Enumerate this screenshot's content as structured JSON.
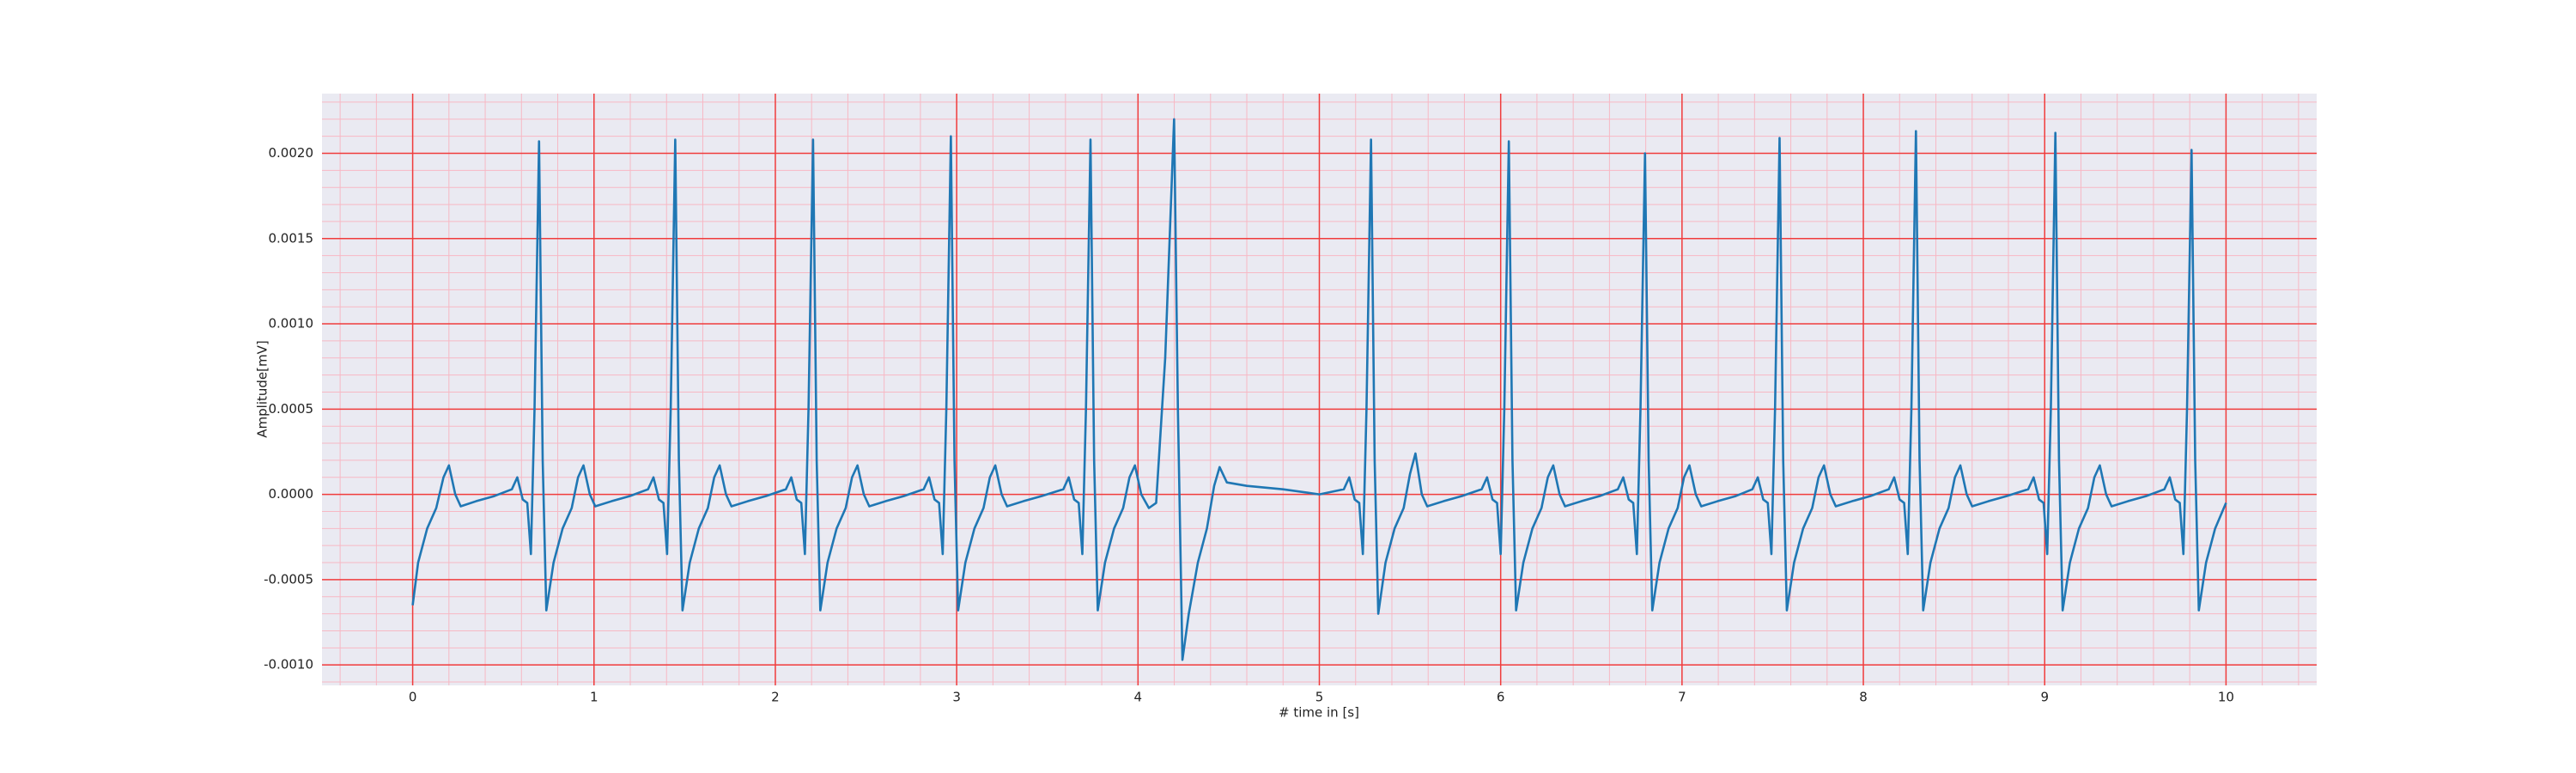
{
  "chart_data": {
    "type": "line",
    "xlabel": "# time in [s]",
    "ylabel": "Amplitude[mV]",
    "color": "#1f77b4",
    "background": "#eaeaf2",
    "grid": true,
    "grid_color": "#f03c3c",
    "minor_grid": {
      "color": "#f7b8c4",
      "x": 0.2,
      "y": 0.0001
    },
    "xlim": [
      -0.5,
      10.5
    ],
    "ylim": [
      -0.00112,
      0.00235
    ],
    "xticks": [
      0,
      1,
      2,
      3,
      4,
      5,
      6,
      7,
      8,
      9,
      10
    ],
    "yticks": [
      {
        "value": -0.001,
        "label": "-0.0010"
      },
      {
        "value": -0.0005,
        "label": "-0.0005"
      },
      {
        "value": 0,
        "label": "0.0000"
      },
      {
        "value": 0.0005,
        "label": "0.0005"
      },
      {
        "value": 0.001,
        "label": "0.0010"
      },
      {
        "value": 0.0015,
        "label": "0.0015"
      },
      {
        "value": 0.002,
        "label": "0.0020"
      }
    ],
    "x": [
      0,
      0.03,
      0.08,
      0.13,
      0.17,
      0.2,
      0.235,
      0.265,
      0.35,
      0.45,
      0.547,
      0.577,
      0.607,
      0.632,
      0.652,
      0.672,
      0.697,
      0.717,
      0.737,
      0.777,
      0.827,
      0.877,
      0.912,
      0.942,
      0.977,
      1.007,
      1.097,
      1.197,
      1.298,
      1.328,
      1.358,
      1.383,
      1.403,
      1.423,
      1.448,
      1.468,
      1.488,
      1.528,
      1.578,
      1.628,
      1.663,
      1.693,
      1.728,
      1.758,
      1.848,
      1.948,
      2.058,
      2.088,
      2.118,
      2.143,
      2.163,
      2.183,
      2.208,
      2.228,
      2.248,
      2.288,
      2.338,
      2.388,
      2.423,
      2.453,
      2.488,
      2.518,
      2.608,
      2.708,
      2.818,
      2.848,
      2.878,
      2.903,
      2.923,
      2.943,
      2.968,
      2.988,
      3.008,
      3.048,
      3.098,
      3.148,
      3.183,
      3.213,
      3.248,
      3.278,
      3.368,
      3.468,
      3.588,
      3.618,
      3.648,
      3.673,
      3.693,
      3.713,
      3.738,
      3.758,
      3.778,
      3.818,
      3.868,
      3.918,
      3.953,
      3.983,
      4.018,
      4.06,
      4.1,
      4.15,
      4.199,
      4.22,
      4.245,
      4.28,
      4.33,
      4.38,
      4.42,
      4.45,
      4.49,
      4.6,
      4.8,
      5.0,
      5.135,
      5.165,
      5.195,
      5.22,
      5.24,
      5.26,
      5.285,
      5.305,
      5.325,
      5.365,
      5.415,
      5.465,
      5.5,
      5.53,
      5.565,
      5.595,
      5.685,
      5.785,
      5.895,
      5.925,
      5.955,
      5.98,
      6.0,
      6.02,
      6.045,
      6.065,
      6.085,
      6.125,
      6.175,
      6.225,
      6.26,
      6.29,
      6.325,
      6.355,
      6.445,
      6.545,
      6.646,
      6.676,
      6.706,
      6.731,
      6.751,
      6.771,
      6.796,
      6.816,
      6.836,
      6.876,
      6.926,
      6.976,
      7.011,
      7.041,
      7.076,
      7.106,
      7.196,
      7.296,
      7.388,
      7.418,
      7.448,
      7.473,
      7.493,
      7.513,
      7.538,
      7.558,
      7.578,
      7.618,
      7.668,
      7.718,
      7.753,
      7.783,
      7.818,
      7.848,
      7.938,
      8.038,
      8.14,
      8.17,
      8.2,
      8.225,
      8.245,
      8.265,
      8.29,
      8.31,
      8.33,
      8.37,
      8.42,
      8.47,
      8.505,
      8.535,
      8.57,
      8.6,
      8.69,
      8.79,
      8.909,
      8.939,
      8.969,
      8.994,
      9.014,
      9.034,
      9.059,
      9.079,
      9.099,
      9.139,
      9.189,
      9.239,
      9.274,
      9.304,
      9.339,
      9.369,
      9.459,
      9.559,
      9.66,
      9.69,
      9.72,
      9.745,
      9.765,
      9.785,
      9.81,
      9.83,
      9.85,
      9.89,
      9.94,
      10.0
    ],
    "values": [
      -0.00065,
      -0.0004,
      -0.0002,
      -8e-05,
      0.0001,
      0.00017,
      0,
      -7e-05,
      -4e-05,
      -1e-05,
      3e-05,
      0.0001,
      -3e-05,
      -5e-05,
      -0.00035,
      0.0005,
      0.00207,
      0.0002,
      -0.00068,
      -0.0004,
      -0.0002,
      -8e-05,
      0.0001,
      0.00017,
      0,
      -7e-05,
      -4e-05,
      -1e-05,
      3e-05,
      0.0001,
      -3e-05,
      -5e-05,
      -0.00035,
      0.0005,
      0.00208,
      0.0002,
      -0.00068,
      -0.0004,
      -0.0002,
      -8e-05,
      0.0001,
      0.00017,
      0,
      -7e-05,
      -4e-05,
      -1e-05,
      3e-05,
      0.0001,
      -3e-05,
      -5e-05,
      -0.00035,
      0.0005,
      0.00208,
      0.0002,
      -0.00068,
      -0.0004,
      -0.0002,
      -8e-05,
      0.0001,
      0.00017,
      0,
      -7e-05,
      -4e-05,
      -1e-05,
      3e-05,
      0.0001,
      -3e-05,
      -5e-05,
      -0.00035,
      0.0005,
      0.0021,
      0.0002,
      -0.00068,
      -0.0004,
      -0.0002,
      -8e-05,
      0.0001,
      0.00017,
      0,
      -7e-05,
      -4e-05,
      -1e-05,
      3e-05,
      0.0001,
      -3e-05,
      -5e-05,
      -0.00035,
      0.0005,
      0.00208,
      0.0002,
      -0.00068,
      -0.0004,
      -0.0002,
      -8e-05,
      0.0001,
      0.00017,
      0,
      -8e-05,
      -5e-05,
      0.0008,
      0.0022,
      0.0005,
      -0.00097,
      -0.0007,
      -0.0004,
      -0.0002,
      5e-05,
      0.00016,
      7e-05,
      5e-05,
      3e-05,
      0,
      3e-05,
      0.0001,
      -3e-05,
      -5e-05,
      -0.00035,
      0.0005,
      0.00208,
      0.0002,
      -0.0007,
      -0.0004,
      -0.0002,
      -8e-05,
      0.00012,
      0.00024,
      0,
      -7e-05,
      -4e-05,
      -1e-05,
      3e-05,
      0.0001,
      -3e-05,
      -5e-05,
      -0.00035,
      0.0005,
      0.00207,
      0.0002,
      -0.00068,
      -0.0004,
      -0.0002,
      -8e-05,
      0.0001,
      0.00017,
      0,
      -7e-05,
      -4e-05,
      -1e-05,
      3e-05,
      0.0001,
      -3e-05,
      -5e-05,
      -0.00035,
      0.0005,
      0.002,
      0.0002,
      -0.00068,
      -0.0004,
      -0.0002,
      -8e-05,
      0.0001,
      0.00017,
      0,
      -7e-05,
      -4e-05,
      -1e-05,
      3e-05,
      0.0001,
      -3e-05,
      -5e-05,
      -0.00035,
      0.0005,
      0.00209,
      0.0002,
      -0.00068,
      -0.0004,
      -0.0002,
      -8e-05,
      0.0001,
      0.00017,
      0,
      -7e-05,
      -4e-05,
      -1e-05,
      3e-05,
      0.0001,
      -3e-05,
      -5e-05,
      -0.00035,
      0.0005,
      0.00213,
      0.0002,
      -0.00068,
      -0.0004,
      -0.0002,
      -8e-05,
      0.0001,
      0.00017,
      0,
      -7e-05,
      -4e-05,
      -1e-05,
      3e-05,
      0.0001,
      -3e-05,
      -5e-05,
      -0.00035,
      0.0005,
      0.00212,
      0.0002,
      -0.00068,
      -0.0004,
      -0.0002,
      -8e-05,
      0.0001,
      0.00017,
      0,
      -7e-05,
      -4e-05,
      -1e-05,
      3e-05,
      0.0001,
      -3e-05,
      -5e-05,
      -0.00035,
      0.0005,
      0.00202,
      0.0002,
      -0.00068,
      -0.0004,
      -0.0002,
      -5e-05
    ]
  }
}
